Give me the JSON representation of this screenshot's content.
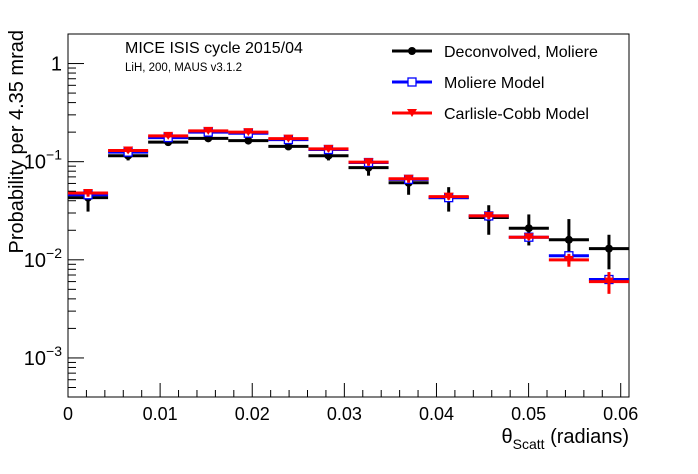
{
  "chart_data": {
    "type": "scatter",
    "title": "MICE ISIS cycle 2015/04",
    "subtitle": "LiH, 200, MAUS v3.1.2",
    "xlabel_main": "θ",
    "xlabel_sub": "Scatt",
    "xlabel_unit": " (radians)",
    "ylabel": "Probability per 4.35 mrad",
    "xlim": [
      0,
      0.0609
    ],
    "ylim": [
      0.0004,
      2.0
    ],
    "yscale": "log",
    "grid": false,
    "legend_position": "top-right",
    "x_ticks": [
      {
        "value": 0,
        "label": "0"
      },
      {
        "value": 0.01,
        "label": "0.01"
      },
      {
        "value": 0.02,
        "label": "0.02"
      },
      {
        "value": 0.03,
        "label": "0.03"
      },
      {
        "value": 0.04,
        "label": "0.04"
      },
      {
        "value": 0.05,
        "label": "0.05"
      },
      {
        "value": 0.06,
        "label": "0.06"
      }
    ],
    "y_ticks": [
      {
        "value": 0.001,
        "base": "10",
        "exp": "−3"
      },
      {
        "value": 0.01,
        "base": "10",
        "exp": "−2"
      },
      {
        "value": 0.1,
        "base": "10",
        "exp": "−1"
      },
      {
        "value": 1,
        "base": "1",
        "exp": ""
      }
    ],
    "bin_width": 0.00435,
    "series": [
      {
        "name": "Deconvolved, Moliere",
        "color": "#000000",
        "marker": "filled-circle",
        "x": [
          0.002175,
          0.006525,
          0.010875,
          0.015225,
          0.019575,
          0.023925,
          0.028275,
          0.032625,
          0.036975,
          0.041325,
          0.045675,
          0.050025,
          0.054375,
          0.058725
        ],
        "y": [
          0.043,
          0.115,
          0.158,
          0.173,
          0.164,
          0.143,
          0.115,
          0.087,
          0.061,
          0.043,
          0.027,
          0.021,
          0.016,
          0.013
        ],
        "err_low": [
          0.012,
          0.012,
          0.012,
          0.012,
          0.012,
          0.012,
          0.012,
          0.015,
          0.015,
          0.012,
          0.009,
          0.007,
          0.007,
          0.005
        ],
        "err_high": [
          0.008,
          0.01,
          0.01,
          0.01,
          0.01,
          0.01,
          0.01,
          0.012,
          0.012,
          0.012,
          0.009,
          0.008,
          0.01,
          0.005
        ]
      },
      {
        "name": "Moliere Model",
        "color": "#0000ff",
        "marker": "open-square",
        "x": [
          0.002175,
          0.006525,
          0.010875,
          0.015225,
          0.019575,
          0.023925,
          0.028275,
          0.032625,
          0.036975,
          0.041325,
          0.045675,
          0.050025,
          0.054375,
          0.058725
        ],
        "y": [
          0.046,
          0.125,
          0.176,
          0.2,
          0.195,
          0.168,
          0.133,
          0.098,
          0.066,
          0.043,
          0.028,
          0.017,
          0.011,
          0.0063
        ],
        "err_low": [
          0,
          0,
          0,
          0,
          0,
          0,
          0,
          0,
          0,
          0,
          0,
          0,
          0,
          0.0008
        ],
        "err_high": [
          0,
          0,
          0,
          0,
          0,
          0,
          0,
          0,
          0,
          0,
          0,
          0,
          0,
          0.0008
        ]
      },
      {
        "name": "Carlisle-Cobb Model",
        "color": "#ff0000",
        "marker": "filled-triangle-down",
        "x": [
          0.002175,
          0.006525,
          0.010875,
          0.015225,
          0.019575,
          0.023925,
          0.028275,
          0.032625,
          0.036975,
          0.041325,
          0.045675,
          0.050025,
          0.054375,
          0.058725
        ],
        "y": [
          0.048,
          0.13,
          0.183,
          0.206,
          0.2,
          0.172,
          0.135,
          0.099,
          0.067,
          0.044,
          0.028,
          0.017,
          0.01,
          0.006
        ],
        "err_low": [
          0.004,
          0.007,
          0.008,
          0.008,
          0.008,
          0.008,
          0.008,
          0.008,
          0.006,
          0.003,
          0.002,
          0.001,
          0.0015,
          0.0015
        ],
        "err_high": [
          0.004,
          0.007,
          0.008,
          0.008,
          0.008,
          0.008,
          0.008,
          0.008,
          0.006,
          0.003,
          0.002,
          0.001,
          0.0015,
          0.0015
        ]
      }
    ]
  }
}
